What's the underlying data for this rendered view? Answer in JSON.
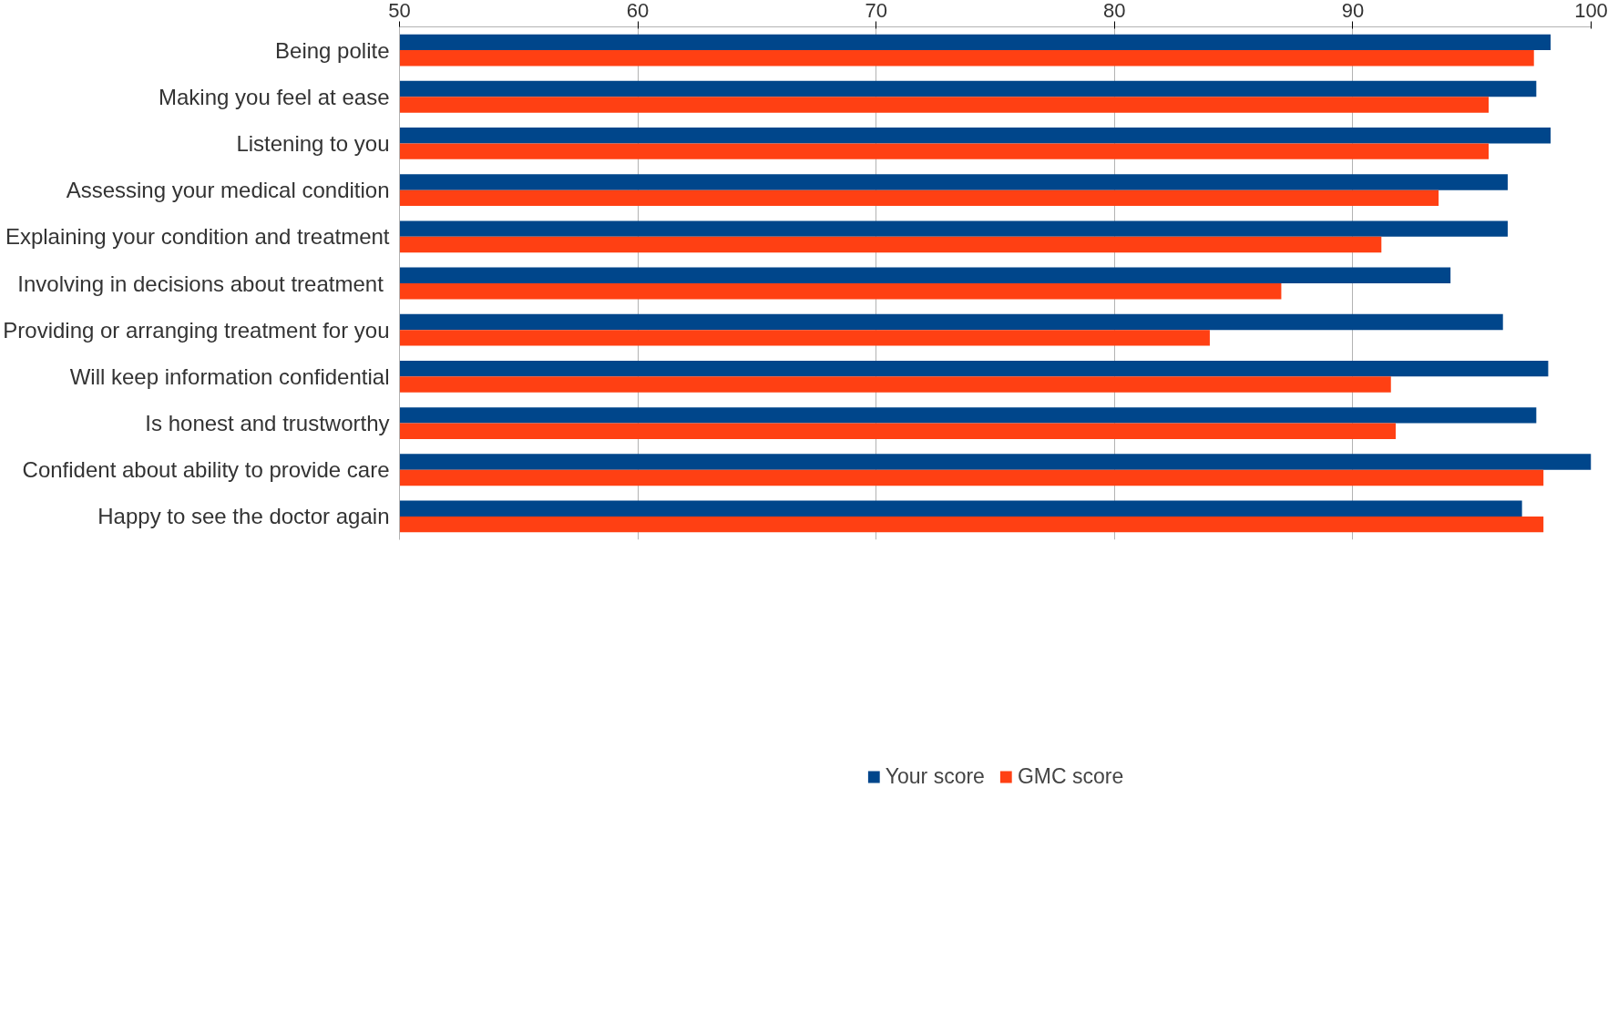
{
  "chart_data": {
    "type": "bar",
    "orientation": "horizontal",
    "categories": [
      "Being polite",
      "Making you feel at ease",
      "Listening to you",
      "Assessing your medical condition",
      "Explaining your condition and treatment",
      "Involving in decisions about  treatment",
      "Providing or arranging treatment for you",
      "Will keep information confidential",
      "Is honest and trustworthy",
      "Confident about ability to provide care",
      "Happy to see the doctor again"
    ],
    "series": [
      {
        "name": "Your score",
        "color": "#00468b",
        "values": [
          98.3,
          97.7,
          98.3,
          96.5,
          96.5,
          94.1,
          96.3,
          98.2,
          97.7,
          100,
          97.1
        ]
      },
      {
        "name": "GMC score",
        "color": "#ff4013",
        "values": [
          97.6,
          95.7,
          95.7,
          93.6,
          91.2,
          87.0,
          84.0,
          91.6,
          91.8,
          98.0,
          98.0
        ]
      }
    ],
    "xlim": [
      50,
      100
    ],
    "xticks": [
      50,
      60,
      70,
      80,
      90,
      100
    ],
    "grid": "x",
    "legend": "bottom"
  }
}
